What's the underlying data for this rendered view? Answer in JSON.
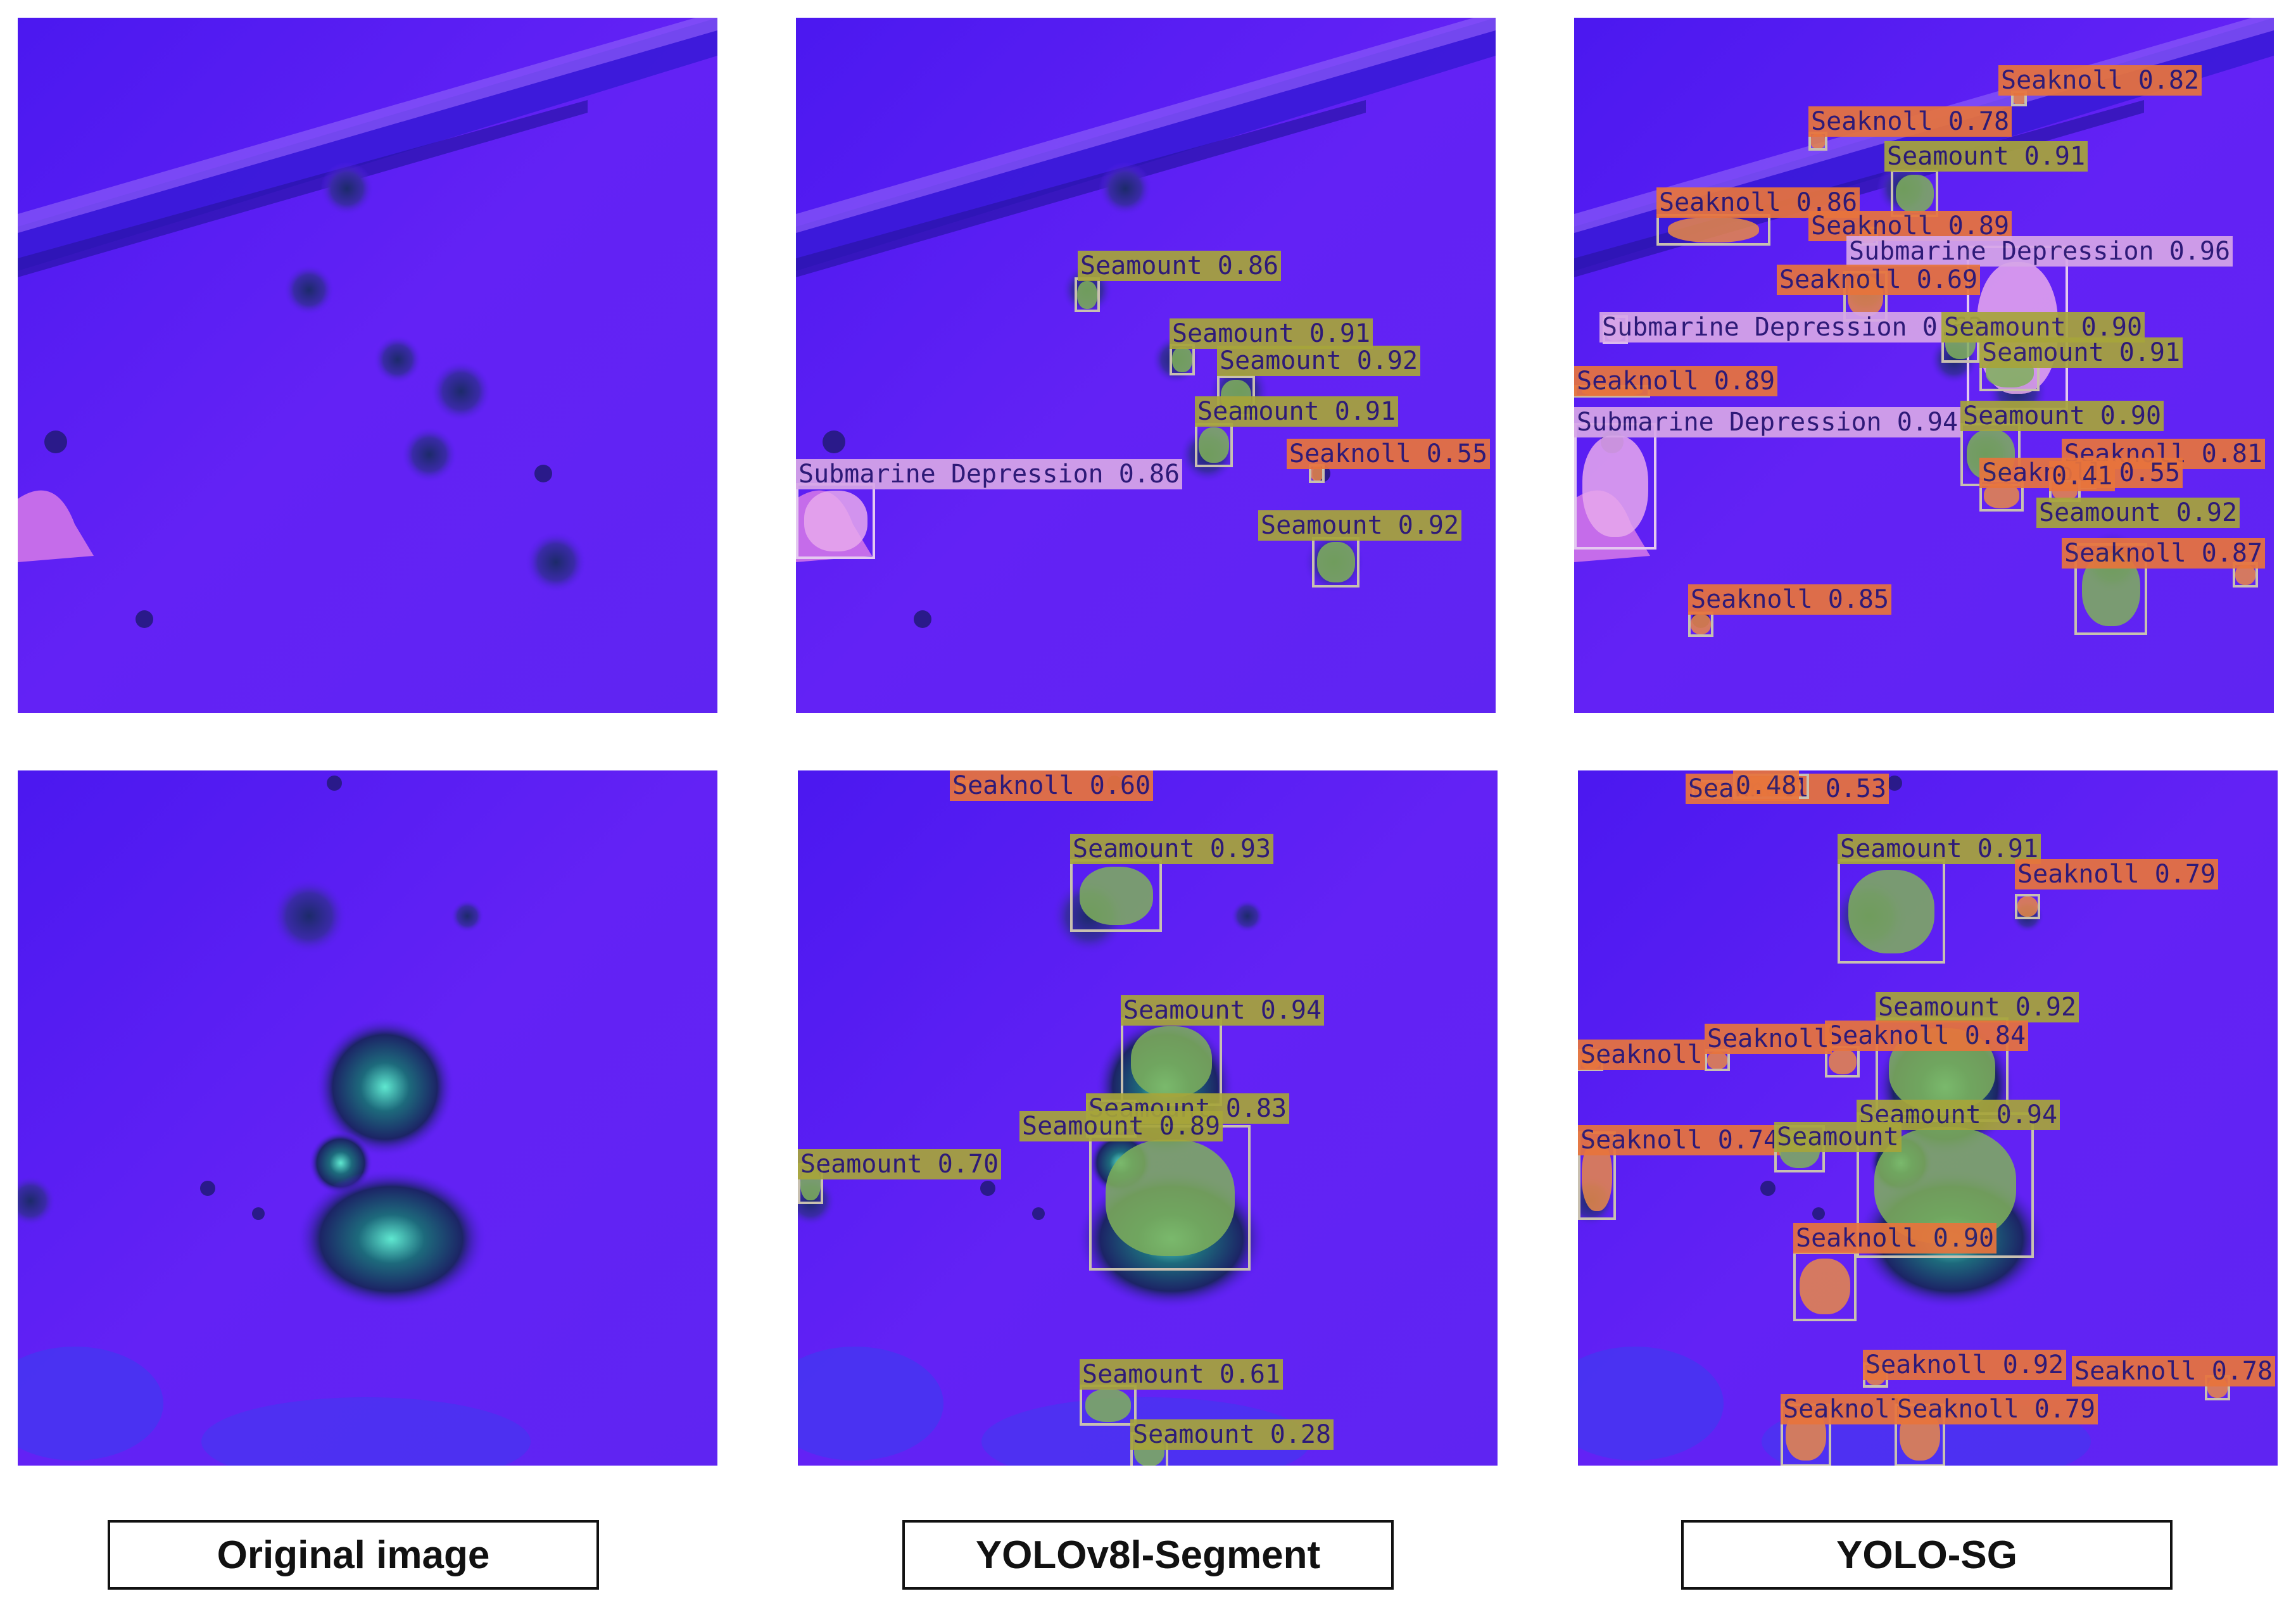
{
  "captions": {
    "original": "Original image",
    "yolov8": "YOLOv8l-Segment",
    "yolosg": "YOLO-SG"
  },
  "colors": {
    "seamount": "#a7a53a",
    "seaknoll": "#e8743c",
    "depression": "#d7a6e8",
    "background": "#5a1ef5"
  },
  "panels": [
    {
      "id": "row1-original",
      "row": 1,
      "col": 1,
      "detections": []
    },
    {
      "id": "row1-yolov8",
      "row": 1,
      "col": 2,
      "detections": [
        {
          "label": "Seamount 0.86",
          "cls": "seamount"
        },
        {
          "label": "Seamount 0.91",
          "cls": "seamount"
        },
        {
          "label": "Seamount 0.92",
          "cls": "seamount"
        },
        {
          "label": "Seamount 0.91",
          "cls": "seamount"
        },
        {
          "label": "Seaknoll 0.55",
          "cls": "seaknoll"
        },
        {
          "label": "Submarine Depression 0.86",
          "cls": "depression"
        },
        {
          "label": "Seamount 0.92",
          "cls": "seamount"
        }
      ]
    },
    {
      "id": "row1-yolosg",
      "row": 1,
      "col": 3,
      "detections": [
        {
          "label": "Seaknoll 0.82",
          "cls": "seaknoll"
        },
        {
          "label": "Seaknoll 0.78",
          "cls": "seaknoll"
        },
        {
          "label": "Seamount 0.91",
          "cls": "seamount"
        },
        {
          "label": "Seaknoll 0.86",
          "cls": "seaknoll"
        },
        {
          "label": "Seaknoll 0.89",
          "cls": "seaknoll"
        },
        {
          "label": "Submarine Depression 0.96",
          "cls": "depression"
        },
        {
          "label": "Seaknoll 0.69",
          "cls": "seaknoll"
        },
        {
          "label": "Submarine Depression 0.63",
          "cls": "depression"
        },
        {
          "label": "Seamount 0.90",
          "cls": "seamount"
        },
        {
          "label": "Seamount 0.91",
          "cls": "seamount"
        },
        {
          "label": "Seaknoll 0.89",
          "cls": "seaknoll"
        },
        {
          "label": "Submarine Depression 0.94",
          "cls": "depression"
        },
        {
          "label": "Seamount 0.90",
          "cls": "seamount"
        },
        {
          "label": "Seaknoll 0.81",
          "cls": "seaknoll"
        },
        {
          "label": "Seaknoll 0.55",
          "cls": "seaknoll"
        },
        {
          "label": "0.41",
          "cls": "seaknoll"
        },
        {
          "label": "Seamount 0.92",
          "cls": "seamount"
        },
        {
          "label": "Seaknoll 0.87",
          "cls": "seaknoll"
        },
        {
          "label": "Seaknoll 0.85",
          "cls": "seaknoll"
        }
      ]
    },
    {
      "id": "row2-original",
      "row": 2,
      "col": 1,
      "detections": []
    },
    {
      "id": "row2-yolov8",
      "row": 2,
      "col": 2,
      "detections": [
        {
          "label": "Seaknoll 0.60",
          "cls": "seaknoll"
        },
        {
          "label": "Seamount 0.93",
          "cls": "seamount"
        },
        {
          "label": "Seamount 0.94",
          "cls": "seamount"
        },
        {
          "label": "Seamount 0.83",
          "cls": "seamount"
        },
        {
          "label": "Seamount 0.89",
          "cls": "seamount"
        },
        {
          "label": "Seamount 0.70",
          "cls": "seamount"
        },
        {
          "label": "Seamount 0.61",
          "cls": "seamount"
        },
        {
          "label": "Seamount 0.28",
          "cls": "seamount"
        }
      ]
    },
    {
      "id": "row2-yolosg",
      "row": 2,
      "col": 3,
      "detections": [
        {
          "label": "Seaknoll 0.53",
          "cls": "seaknoll"
        },
        {
          "label": "0.48",
          "cls": "seaknoll"
        },
        {
          "label": "Seamount 0.91",
          "cls": "seamount"
        },
        {
          "label": "Seaknoll 0.79",
          "cls": "seaknoll"
        },
        {
          "label": "Seamount 0.92",
          "cls": "seamount"
        },
        {
          "label": "Seaknoll 0.84",
          "cls": "seaknoll"
        },
        {
          "label": "Seaknoll",
          "cls": "seaknoll"
        },
        {
          "label": "Seaknoll",
          "cls": "seaknoll"
        },
        {
          "label": "Seamount 0.94",
          "cls": "seamount"
        },
        {
          "label": "Seaknoll 0.74",
          "cls": "seaknoll"
        },
        {
          "label": "Seamount",
          "cls": "seamount"
        },
        {
          "label": "Seaknoll 0.90",
          "cls": "seaknoll"
        },
        {
          "label": "Seaknoll 0.92",
          "cls": "seaknoll"
        },
        {
          "label": "Seaknoll 0.78",
          "cls": "seaknoll"
        },
        {
          "label": "Seaknoll",
          "cls": "seaknoll"
        },
        {
          "label": "Seaknoll 0.79",
          "cls": "seaknoll"
        }
      ]
    }
  ]
}
